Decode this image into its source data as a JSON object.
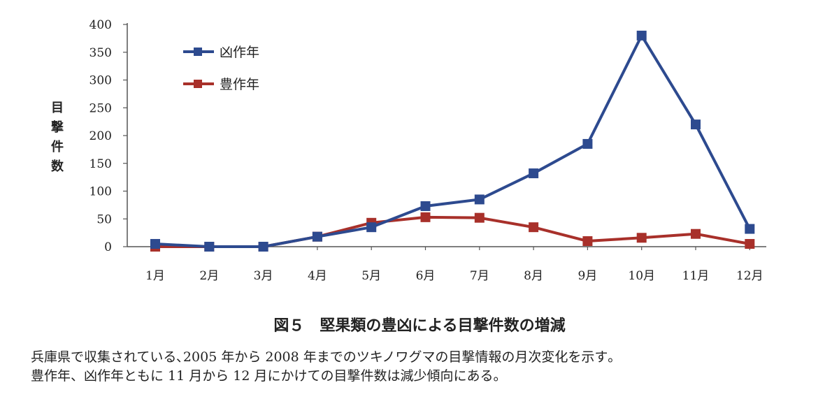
{
  "chart_data": {
    "type": "line",
    "categories": [
      "1月",
      "2月",
      "3月",
      "4月",
      "5月",
      "6月",
      "7月",
      "8月",
      "9月",
      "10月",
      "11月",
      "12月"
    ],
    "series": [
      {
        "name": "凶作年",
        "color": "#2d4a8f",
        "values": [
          5,
          0,
          0,
          18,
          35,
          73,
          85,
          132,
          185,
          380,
          220,
          32
        ]
      },
      {
        "name": "豊作年",
        "color": "#a8302a",
        "values": [
          0,
          0,
          0,
          18,
          43,
          53,
          52,
          35,
          10,
          16,
          23,
          5
        ]
      }
    ],
    "ylabel": "目撃件数",
    "ylim": [
      0,
      400
    ],
    "yticks": [
      0,
      50,
      100,
      150,
      200,
      250,
      300,
      350,
      400
    ],
    "grid": false,
    "legend": "top-left"
  },
  "figure": {
    "title": "図５　堅果類の豊凶による目撃件数の増減",
    "caption_line1": "兵庫県で収集されている､2005 年から 2008 年までのツキノワグマの目撃情報の月次変化を示す｡",
    "caption_line2": "豊作年、凶作年ともに 11 月から 12 月にかけての目撃件数は減少傾向にある。"
  }
}
